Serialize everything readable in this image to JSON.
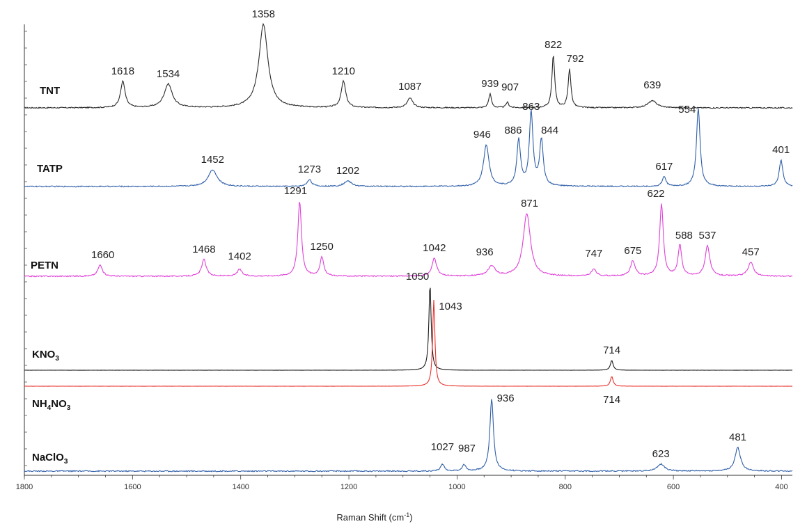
{
  "chart_data": {
    "type": "line",
    "title": "",
    "xlabel": "Raman Shift (cm",
    "xlabel_sup": "-1",
    "xlabel_close": ")",
    "ylabel": "",
    "xlim": [
      1800,
      380
    ],
    "x_reversed": true,
    "x_ticks": [
      1800,
      1600,
      1400,
      1200,
      1000,
      800,
      600,
      400
    ],
    "grid": false,
    "legend": "none",
    "series": [
      {
        "name": "TNT",
        "sub": "",
        "tail": "",
        "color": "#2a2a2a",
        "peaks": [
          {
            "x": 1618,
            "h": 38,
            "w": 5,
            "label": "1618"
          },
          {
            "x": 1534,
            "h": 34,
            "w": 9,
            "label": "1534"
          },
          {
            "x": 1358,
            "h": 120,
            "w": 10,
            "label": "1358"
          },
          {
            "x": 1210,
            "h": 38,
            "w": 5,
            "label": "1210"
          },
          {
            "x": 1087,
            "h": 14,
            "w": 6,
            "label": "1087"
          },
          {
            "x": 939,
            "h": 20,
            "w": 3,
            "label": "939"
          },
          {
            "x": 907,
            "h": 8,
            "w": 3,
            "label": "907"
          },
          {
            "x": 822,
            "h": 76,
            "w": 3,
            "label": "822"
          },
          {
            "x": 792,
            "h": 56,
            "w": 3,
            "label": "792"
          },
          {
            "x": 639,
            "h": 10,
            "w": 10,
            "label": "639"
          }
        ]
      },
      {
        "name": "TATP",
        "sub": "",
        "tail": "",
        "color": "#2e5ea8",
        "peaks": [
          {
            "x": 1452,
            "h": 24,
            "w": 10,
            "label": "1452"
          },
          {
            "x": 1273,
            "h": 10,
            "w": 5,
            "label": "1273"
          },
          {
            "x": 1202,
            "h": 8,
            "w": 8,
            "label": "1202"
          },
          {
            "x": 946,
            "h": 60,
            "w": 6,
            "label": "946"
          },
          {
            "x": 886,
            "h": 66,
            "w": 4,
            "label": "886"
          },
          {
            "x": 863,
            "h": 106,
            "w": 4,
            "label": "863"
          },
          {
            "x": 844,
            "h": 66,
            "w": 4,
            "label": "844"
          },
          {
            "x": 617,
            "h": 14,
            "w": 4,
            "label": "617"
          },
          {
            "x": 554,
            "h": 112,
            "w": 4,
            "label": "554"
          },
          {
            "x": 401,
            "h": 38,
            "w": 4,
            "label": "401"
          }
        ]
      },
      {
        "name": "PETN",
        "sub": "",
        "tail": "",
        "color": "#e040d8",
        "peaks": [
          {
            "x": 1660,
            "h": 16,
            "w": 5,
            "label": "1660"
          },
          {
            "x": 1468,
            "h": 24,
            "w": 5,
            "label": "1468"
          },
          {
            "x": 1402,
            "h": 10,
            "w": 5,
            "label": "1402"
          },
          {
            "x": 1291,
            "h": 108,
            "w": 4,
            "label": "1291"
          },
          {
            "x": 1250,
            "h": 28,
            "w": 4,
            "label": "1250"
          },
          {
            "x": 1042,
            "h": 26,
            "w": 5,
            "label": "1042"
          },
          {
            "x": 936,
            "h": 14,
            "w": 8,
            "label": "936"
          },
          {
            "x": 871,
            "h": 90,
            "w": 8,
            "label": "871"
          },
          {
            "x": 747,
            "h": 10,
            "w": 5,
            "label": "747"
          },
          {
            "x": 675,
            "h": 22,
            "w": 5,
            "label": "675"
          },
          {
            "x": 622,
            "h": 104,
            "w": 4,
            "label": "622"
          },
          {
            "x": 588,
            "h": 44,
            "w": 4,
            "label": "588"
          },
          {
            "x": 537,
            "h": 44,
            "w": 5,
            "label": "537"
          },
          {
            "x": 457,
            "h": 20,
            "w": 6,
            "label": "457"
          }
        ]
      },
      {
        "name": "KNO",
        "sub": "3",
        "tail": "",
        "color": "#1a1a1a",
        "peaks": [
          {
            "x": 1050,
            "h": 124,
            "w": 2.5,
            "label": "1050"
          },
          {
            "x": 714,
            "h": 14,
            "w": 3,
            "label": "714"
          }
        ]
      },
      {
        "name": "NH",
        "sub": "4",
        "tail": "NO",
        "sub2": "3",
        "color": "#e8302a",
        "peaks": [
          {
            "x": 1043,
            "h": 124,
            "w": 2.5,
            "label": "1043"
          },
          {
            "x": 714,
            "h": 14,
            "w": 3,
            "label": "714"
          }
        ]
      },
      {
        "name": "NaClO",
        "sub": "3",
        "tail": "",
        "color": "#2e5ea8",
        "peaks": [
          {
            "x": 1027,
            "h": 10,
            "w": 4,
            "label": "1027"
          },
          {
            "x": 987,
            "h": 9,
            "w": 4,
            "label": "987"
          },
          {
            "x": 936,
            "h": 104,
            "w": 4,
            "label": "936"
          },
          {
            "x": 623,
            "h": 10,
            "w": 8,
            "label": "623"
          },
          {
            "x": 481,
            "h": 34,
            "w": 6,
            "label": "481"
          }
        ]
      }
    ]
  }
}
